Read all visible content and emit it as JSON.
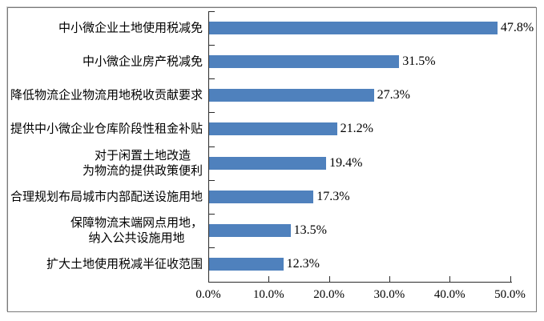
{
  "window": {
    "background_color": "#ffffff",
    "frame_border_color": "#7a7a7a"
  },
  "chart_data": {
    "type": "bar",
    "orientation": "horizontal",
    "title": "",
    "xlabel": "",
    "ylabel": "",
    "categories": [
      "中小微企业土地使用税减免",
      "中小微企业房产税减免",
      "降低物流企业物流用地税收贡献要求",
      "提供中小微企业仓库阶段性租金补贴",
      "对于闲置土地改造\n为物流的提供政策便利",
      "合理规划布局城市内部配送设施用地",
      "保障物流末端网点用地，\n纳入公共设施用地",
      "扩大土地使用税减半征收范围"
    ],
    "values": [
      47.8,
      31.5,
      27.3,
      21.2,
      19.4,
      17.3,
      13.5,
      12.3
    ],
    "value_labels": [
      "47.8%",
      "31.5%",
      "27.3%",
      "21.2%",
      "19.4%",
      "17.3%",
      "13.5%",
      "12.3%"
    ],
    "x_tick_values": [
      0,
      10,
      20,
      30,
      40,
      50
    ],
    "x_tick_labels": [
      "0.0%",
      "10.0%",
      "20.0%",
      "30.0%",
      "40.0%",
      "50.0%"
    ],
    "xlim": [
      0,
      50
    ],
    "bar_color": "#4f81bd",
    "axis_color": "#2b2b2b",
    "grid": false,
    "legend": false
  }
}
